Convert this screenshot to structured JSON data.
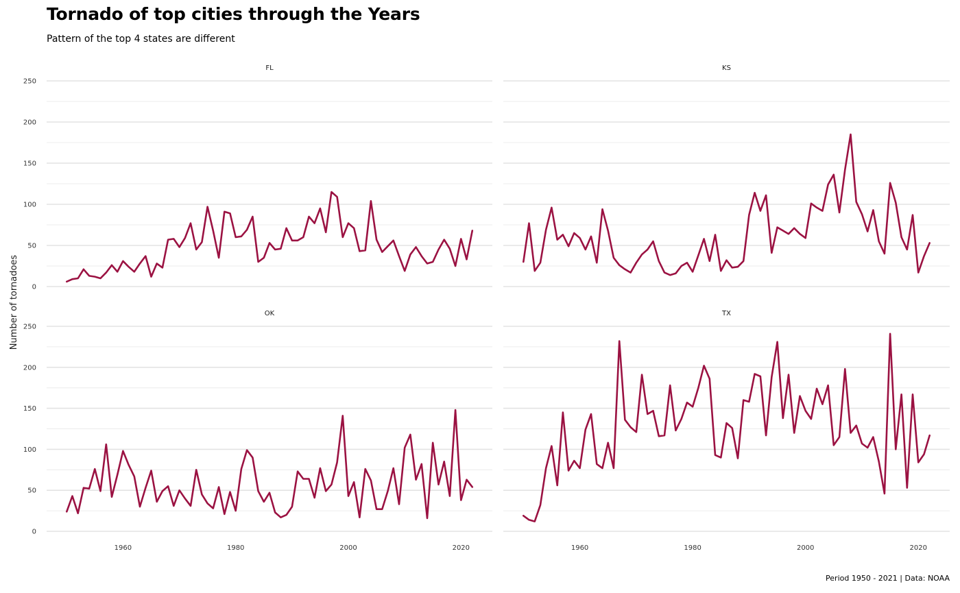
{
  "title": "Tornado of top cities through the Years",
  "subtitle": "Pattern of the top 4 states are different",
  "caption": "Period 1950 - 2021 | Data: NOAA",
  "chart_data": {
    "type": "line",
    "title": "Tornado of top cities through the Years",
    "subtitle": "Pattern of the top 4 states are different",
    "xlabel": "",
    "ylabel": "Number of tornadoes",
    "xlim": [
      1950,
      2022
    ],
    "ylim": [
      0,
      250
    ],
    "x_ticks": [
      1960,
      1980,
      2000,
      2020
    ],
    "y_ticks": [
      0,
      50,
      100,
      150,
      200,
      250
    ],
    "grid": true,
    "line_color": "#9B1242",
    "x": [
      1950,
      1951,
      1952,
      1953,
      1954,
      1955,
      1956,
      1957,
      1958,
      1959,
      1960,
      1961,
      1962,
      1963,
      1964,
      1965,
      1966,
      1967,
      1968,
      1969,
      1970,
      1971,
      1972,
      1973,
      1974,
      1975,
      1976,
      1977,
      1978,
      1979,
      1980,
      1981,
      1982,
      1983,
      1984,
      1985,
      1986,
      1987,
      1988,
      1989,
      1990,
      1991,
      1992,
      1993,
      1994,
      1995,
      1996,
      1997,
      1998,
      1999,
      2000,
      2001,
      2002,
      2003,
      2004,
      2005,
      2006,
      2007,
      2008,
      2009,
      2010,
      2011,
      2012,
      2013,
      2014,
      2015,
      2016,
      2017,
      2018,
      2019,
      2020,
      2021,
      2022
    ],
    "panels": [
      {
        "name": "FL",
        "values": [
          6,
          9,
          10,
          21,
          13,
          12,
          10,
          17,
          26,
          18,
          31,
          24,
          18,
          28,
          37,
          12,
          28,
          23,
          57,
          58,
          48,
          59,
          77,
          45,
          54,
          97,
          68,
          35,
          91,
          89,
          60,
          61,
          69,
          85,
          30,
          35,
          53,
          45,
          46,
          71,
          56,
          56,
          60,
          85,
          77,
          95,
          66,
          115,
          109,
          60,
          77,
          71,
          43,
          44,
          104,
          57,
          42,
          49,
          56,
          37,
          19,
          39,
          48,
          37,
          28,
          30,
          45,
          57,
          46,
          25,
          58,
          33,
          68
        ]
      },
      {
        "name": "KS",
        "values": [
          30,
          77,
          19,
          29,
          69,
          96,
          57,
          63,
          49,
          65,
          59,
          45,
          61,
          29,
          94,
          68,
          35,
          26,
          21,
          17,
          29,
          39,
          45,
          55,
          31,
          17,
          14,
          16,
          25,
          29,
          18,
          38,
          58,
          31,
          63,
          19,
          32,
          23,
          24,
          31,
          87,
          114,
          92,
          111,
          41,
          72,
          68,
          64,
          71,
          64,
          59,
          101,
          96,
          92,
          124,
          136,
          90,
          142,
          185,
          103,
          88,
          67,
          93,
          55,
          40,
          126,
          102,
          60,
          45,
          87,
          17,
          37,
          53
        ]
      },
      {
        "name": "OK",
        "values": [
          24,
          43,
          22,
          53,
          52,
          76,
          49,
          106,
          42,
          69,
          98,
          81,
          67,
          30,
          53,
          74,
          36,
          49,
          55,
          31,
          50,
          40,
          31,
          75,
          45,
          34,
          28,
          54,
          21,
          48,
          25,
          76,
          99,
          90,
          49,
          36,
          47,
          23,
          17,
          20,
          30,
          73,
          64,
          64,
          41,
          77,
          49,
          57,
          84,
          141,
          43,
          60,
          17,
          76,
          62,
          27,
          27,
          49,
          77,
          33,
          102,
          118,
          63,
          82,
          16,
          108,
          57,
          85,
          43,
          148,
          38,
          63,
          54
        ]
      },
      {
        "name": "TX",
        "values": [
          19,
          14,
          12,
          32,
          77,
          104,
          56,
          145,
          74,
          86,
          77,
          124,
          143,
          82,
          77,
          108,
          77,
          232,
          136,
          127,
          121,
          191,
          143,
          147,
          116,
          117,
          178,
          123,
          137,
          157,
          152,
          175,
          202,
          186,
          93,
          90,
          132,
          126,
          89,
          160,
          158,
          192,
          189,
          117,
          188,
          231,
          138,
          191,
          120,
          165,
          147,
          137,
          174,
          155,
          178,
          105,
          115,
          198,
          120,
          129,
          107,
          102,
          115,
          85,
          46,
          241,
          100,
          167,
          53,
          167,
          84,
          94,
          117
        ]
      }
    ]
  }
}
